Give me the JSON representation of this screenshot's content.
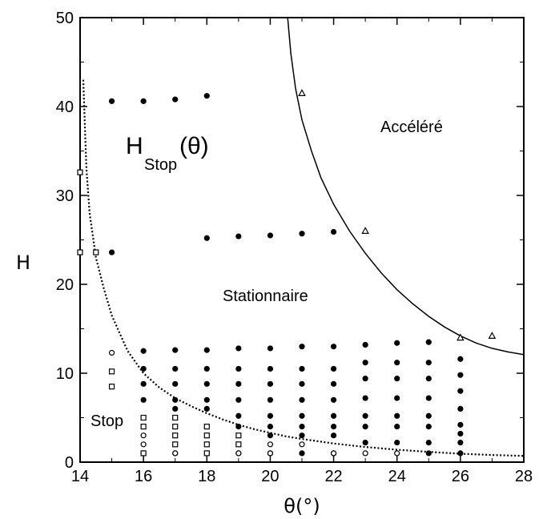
{
  "chart_data": {
    "type": "scatter",
    "xlabel": "θ(°)",
    "ylabel": "H",
    "xlim": [
      14,
      28
    ],
    "ylim": [
      0,
      50
    ],
    "xticks": [
      14,
      16,
      18,
      20,
      22,
      24,
      26,
      28
    ],
    "yticks": [
      0,
      10,
      20,
      30,
      40,
      50
    ],
    "grid": false,
    "annotations": {
      "accelere": "Accéléré",
      "stationnaire": "Stationnaire",
      "stop": "Stop",
      "hstop_main": "H",
      "hstop_sub": "Stop",
      "hstop_arg": "(θ)"
    },
    "curves": [
      {
        "style": "dotted",
        "points": [
          [
            14.1,
            43
          ],
          [
            14.15,
            38
          ],
          [
            14.2,
            33
          ],
          [
            14.3,
            28
          ],
          [
            14.5,
            23
          ],
          [
            14.75,
            19.5
          ],
          [
            15,
            16.5
          ],
          [
            15.5,
            12.5
          ],
          [
            16,
            10
          ],
          [
            16.5,
            8.4
          ],
          [
            17,
            7.2
          ],
          [
            17.5,
            6.3
          ],
          [
            18,
            5.5
          ],
          [
            18.5,
            4.8
          ],
          [
            19,
            4.2
          ],
          [
            19.5,
            3.7
          ],
          [
            20,
            3.3
          ],
          [
            20.5,
            2.9
          ],
          [
            21,
            2.6
          ],
          [
            22,
            2.1
          ],
          [
            23,
            1.7
          ],
          [
            24,
            1.4
          ],
          [
            25,
            1.15
          ],
          [
            26,
            0.95
          ],
          [
            27,
            0.8
          ],
          [
            28,
            0.7
          ]
        ]
      },
      {
        "style": "solid",
        "points": [
          [
            20.55,
            50
          ],
          [
            20.65,
            46
          ],
          [
            20.8,
            42
          ],
          [
            21,
            38.5
          ],
          [
            21.3,
            35
          ],
          [
            21.6,
            32
          ],
          [
            22,
            29
          ],
          [
            22.5,
            26
          ],
          [
            23,
            23.5
          ],
          [
            23.5,
            21.3
          ],
          [
            24,
            19.4
          ],
          [
            24.5,
            17.8
          ],
          [
            25,
            16.4
          ],
          [
            25.5,
            15.2
          ],
          [
            26,
            14.2
          ],
          [
            26.5,
            13.4
          ],
          [
            27,
            12.8
          ],
          [
            27.5,
            12.4
          ],
          [
            28,
            12.1
          ]
        ]
      }
    ],
    "series": [
      {
        "marker": "filled-circle",
        "points": [
          [
            15,
            40.6
          ],
          [
            16,
            40.6
          ],
          [
            17,
            40.8
          ],
          [
            18,
            41.2
          ],
          [
            15,
            23.6
          ],
          [
            18,
            25.2
          ],
          [
            19,
            25.4
          ],
          [
            20,
            25.5
          ],
          [
            21,
            25.7
          ],
          [
            22,
            25.9
          ],
          [
            16,
            12.5
          ],
          [
            16,
            10.5
          ],
          [
            16,
            8.8
          ],
          [
            16,
            7
          ],
          [
            17,
            12.6
          ],
          [
            17,
            10.5
          ],
          [
            17,
            8.8
          ],
          [
            17,
            7
          ],
          [
            17,
            6
          ],
          [
            18,
            12.6
          ],
          [
            18,
            10.5
          ],
          [
            18,
            8.8
          ],
          [
            18,
            7
          ],
          [
            18,
            6
          ],
          [
            19,
            12.8
          ],
          [
            19,
            10.5
          ],
          [
            19,
            8.8
          ],
          [
            19,
            7
          ],
          [
            19,
            5.2
          ],
          [
            19,
            4
          ],
          [
            20,
            12.8
          ],
          [
            20,
            10.5
          ],
          [
            20,
            8.8
          ],
          [
            20,
            7
          ],
          [
            20,
            5.2
          ],
          [
            20,
            4
          ],
          [
            20,
            3
          ],
          [
            21,
            13
          ],
          [
            21,
            10.5
          ],
          [
            21,
            8.8
          ],
          [
            21,
            7
          ],
          [
            21,
            5.2
          ],
          [
            21,
            4
          ],
          [
            21,
            3
          ],
          [
            22,
            13
          ],
          [
            22,
            10.5
          ],
          [
            22,
            8.8
          ],
          [
            22,
            7
          ],
          [
            22,
            5.2
          ],
          [
            22,
            4
          ],
          [
            22,
            3
          ],
          [
            23,
            13.2
          ],
          [
            23,
            11.2
          ],
          [
            23,
            9.4
          ],
          [
            23,
            7.2
          ],
          [
            23,
            5.2
          ],
          [
            23,
            4
          ],
          [
            23,
            2.2
          ],
          [
            24,
            13.4
          ],
          [
            24,
            11.2
          ],
          [
            24,
            9.4
          ],
          [
            24,
            7.2
          ],
          [
            24,
            5.2
          ],
          [
            24,
            4
          ],
          [
            24,
            2.2
          ],
          [
            25,
            13.5
          ],
          [
            25,
            11.2
          ],
          [
            25,
            9.4
          ],
          [
            25,
            7.2
          ],
          [
            25,
            5.2
          ],
          [
            25,
            4
          ],
          [
            25,
            2.2
          ],
          [
            25,
            1
          ],
          [
            26,
            11.6
          ],
          [
            26,
            9.8
          ],
          [
            26,
            8
          ],
          [
            26,
            6
          ],
          [
            26,
            4.2
          ],
          [
            26,
            3.2
          ],
          [
            26,
            2.2
          ],
          [
            26,
            1
          ],
          [
            16,
            1
          ],
          [
            17,
            1
          ],
          [
            18,
            1
          ],
          [
            19,
            1
          ],
          [
            20,
            1
          ],
          [
            21,
            1
          ],
          [
            22,
            1
          ]
        ]
      },
      {
        "marker": "open-square",
        "points": [
          [
            14,
            32.6
          ],
          [
            14,
            23.6
          ],
          [
            14.5,
            23.6
          ],
          [
            15,
            10.2
          ],
          [
            15,
            8.5
          ],
          [
            16,
            5
          ],
          [
            16,
            4
          ],
          [
            17,
            5
          ],
          [
            17,
            4
          ],
          [
            17,
            3
          ],
          [
            17,
            2
          ],
          [
            18,
            4
          ],
          [
            18,
            3
          ],
          [
            18,
            2
          ],
          [
            19,
            3
          ],
          [
            19,
            2
          ],
          [
            16,
            1
          ],
          [
            18,
            1
          ]
        ]
      },
      {
        "marker": "open-circle",
        "points": [
          [
            15,
            12.3
          ],
          [
            16,
            3
          ],
          [
            16,
            2
          ],
          [
            17,
            1
          ],
          [
            19,
            1
          ],
          [
            20,
            2
          ],
          [
            20,
            1
          ],
          [
            21,
            2
          ],
          [
            22,
            1
          ],
          [
            23,
            1
          ],
          [
            24,
            1
          ]
        ]
      },
      {
        "marker": "open-triangle",
        "points": [
          [
            21,
            41.5
          ],
          [
            23,
            26
          ],
          [
            26,
            14
          ],
          [
            27,
            14.2
          ]
        ]
      }
    ]
  }
}
